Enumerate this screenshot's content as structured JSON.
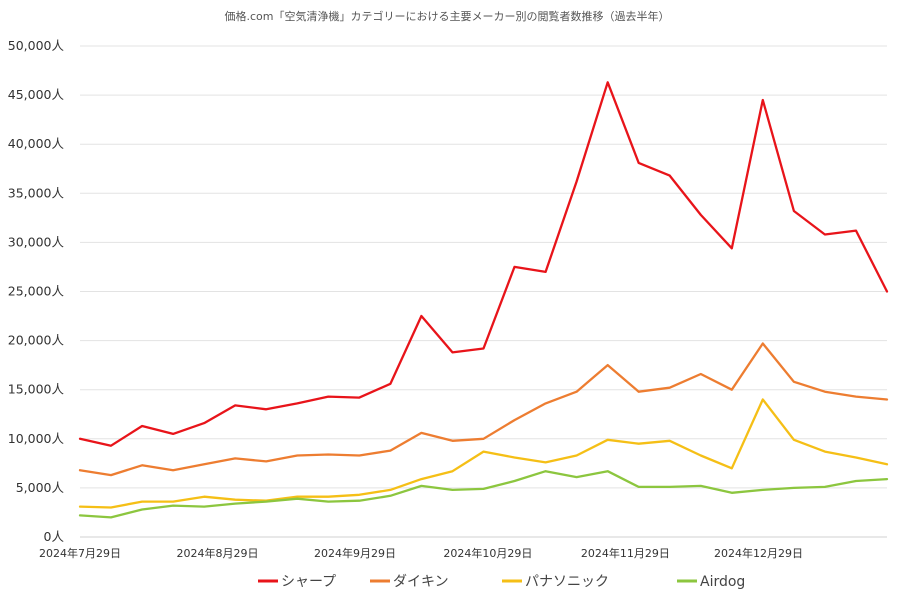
{
  "chart_data": {
    "type": "line",
    "title": "価格.com「空気清浄機」カテゴリーにおける主要メーカー別の閲覧者数推移（過去半年）",
    "xlabel": "",
    "ylabel": "",
    "ylim": [
      0,
      50000
    ],
    "yticks": [
      0,
      5000,
      10000,
      15000,
      20000,
      25000,
      30000,
      35000,
      40000,
      45000,
      50000
    ],
    "ytick_labels": [
      "0人",
      "5,000人",
      "10,000人",
      "15,000人",
      "20,000人",
      "25,000人",
      "30,000人",
      "35,000人",
      "40,000人",
      "45,000人",
      "50,000人"
    ],
    "x_tick_labels": [
      {
        "index": 0,
        "label": "2024年7月29日"
      },
      {
        "index": 4.43,
        "label": "2024年8月29日"
      },
      {
        "index": 8.86,
        "label": "2024年9月29日"
      },
      {
        "index": 13.14,
        "label": "2024年10月29日"
      },
      {
        "index": 17.57,
        "label": "2024年11月29日"
      },
      {
        "index": 21.86,
        "label": "2024年12月29日"
      }
    ],
    "num_points": 27,
    "grid": true,
    "legend_position": "bottom",
    "series": [
      {
        "name": "シャープ",
        "color": "#e8141a",
        "values": [
          10000,
          9300,
          11300,
          10500,
          11600,
          13400,
          13000,
          13600,
          14300,
          14200,
          15600,
          22500,
          18800,
          19200,
          27500,
          27000,
          36200,
          46300,
          38100,
          36800,
          32800,
          29400,
          44500,
          33200,
          30800,
          31200,
          25000
        ]
      },
      {
        "name": "ダイキン",
        "color": "#ed7d31",
        "values": [
          6800,
          6300,
          7300,
          6800,
          7400,
          8000,
          7700,
          8300,
          8400,
          8300,
          8800,
          10600,
          9800,
          10000,
          11900,
          13600,
          14800,
          17500,
          14800,
          15200,
          16600,
          15000,
          19700,
          15800,
          14800,
          14300,
          14000
        ]
      },
      {
        "name": "パナソニック",
        "color": "#f5bf16",
        "values": [
          3100,
          3000,
          3600,
          3600,
          4100,
          3800,
          3700,
          4100,
          4100,
          4300,
          4800,
          5900,
          6700,
          8700,
          8100,
          7600,
          8300,
          9900,
          9500,
          9800,
          8300,
          7000,
          14000,
          9900,
          8700,
          8100,
          7400
        ]
      },
      {
        "name": "Airdog",
        "color": "#8cc63f",
        "values": [
          2200,
          2000,
          2800,
          3200,
          3100,
          3400,
          3600,
          3900,
          3600,
          3700,
          4200,
          5200,
          4800,
          4900,
          5700,
          6700,
          6100,
          6700,
          5100,
          5100,
          5200,
          4500,
          4800,
          5000,
          5100,
          5700,
          5900
        ]
      }
    ]
  }
}
